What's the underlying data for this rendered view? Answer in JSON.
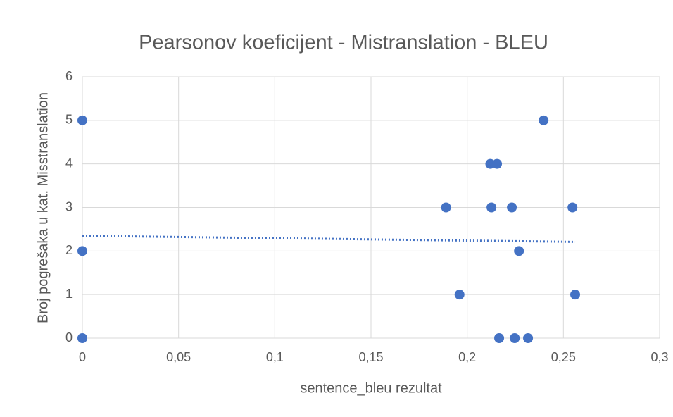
{
  "chart_data": {
    "type": "scatter",
    "title": "Pearsonov koeficijent - Mistranslation - BLEU",
    "xlabel": "sentence_bleu rezultat",
    "ylabel": "Broj pogrešaka u kat. Misstranslation",
    "series": [
      {
        "name": "Mistranslation",
        "color": "#4472c4",
        "x": [
          0,
          0,
          0,
          0.189,
          0.196,
          0.212,
          0.2155,
          0.2126,
          0.2232,
          0.2397,
          0.2547,
          0.2269,
          0.2561,
          0.2166,
          0.2247,
          0.2316
        ],
        "values": [
          5,
          2,
          0,
          3,
          1,
          4,
          4,
          3,
          3,
          5,
          3,
          2,
          1,
          0,
          0,
          0
        ]
      }
    ],
    "trendline": "linear",
    "xlim": [
      0,
      0.3
    ],
    "xticks": [
      0,
      {
        "value": 0.05,
        "label": "0,05"
      },
      {
        "value": 0.1,
        "label": "0,1"
      },
      {
        "value": 0.15,
        "label": "0,15"
      },
      {
        "value": 0.2,
        "label": "0,2"
      },
      {
        "value": 0.25,
        "label": "0,25"
      },
      {
        "value": 0.3,
        "label": "0,3"
      }
    ],
    "ylim": [
      0,
      6
    ],
    "yticks": [
      0,
      1,
      2,
      3,
      4,
      5,
      6
    ],
    "grid": true
  }
}
